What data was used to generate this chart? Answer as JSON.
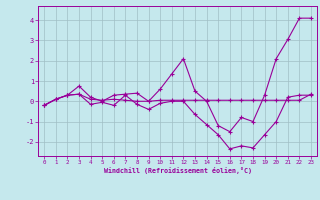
{
  "xlabel": "Windchill (Refroidissement éolien,°C)",
  "xlim": [
    -0.5,
    23.5
  ],
  "ylim": [
    -2.7,
    4.7
  ],
  "xticks": [
    0,
    1,
    2,
    3,
    4,
    5,
    6,
    7,
    8,
    9,
    10,
    11,
    12,
    13,
    14,
    15,
    16,
    17,
    18,
    19,
    20,
    21,
    22,
    23
  ],
  "yticks": [
    -2,
    -1,
    0,
    1,
    2,
    3,
    4
  ],
  "bg_color": "#c5e8ed",
  "grid_color": "#a0bfc5",
  "line_color": "#990099",
  "line1_y": [
    -0.2,
    0.1,
    0.3,
    0.75,
    0.2,
    0.0,
    0.3,
    0.35,
    0.4,
    0.0,
    0.6,
    1.35,
    2.1,
    0.5,
    0.0,
    -1.2,
    -1.5,
    -0.8,
    -1.0,
    0.3,
    2.1,
    3.05,
    4.1,
    4.1
  ],
  "line2_y": [
    -0.2,
    0.1,
    0.3,
    0.35,
    -0.15,
    -0.05,
    -0.2,
    0.3,
    -0.15,
    -0.4,
    -0.1,
    0.0,
    0.0,
    -0.65,
    -1.15,
    -1.65,
    -2.35,
    -2.2,
    -2.3,
    -1.65,
    -1.0,
    0.2,
    0.3,
    0.3
  ],
  "line3_y": [
    -0.2,
    0.1,
    0.3,
    0.35,
    0.1,
    0.05,
    0.1,
    0.05,
    0.0,
    0.0,
    0.05,
    0.05,
    0.05,
    0.05,
    0.05,
    0.05,
    0.05,
    0.05,
    0.05,
    0.05,
    0.05,
    0.05,
    0.05,
    0.35
  ]
}
